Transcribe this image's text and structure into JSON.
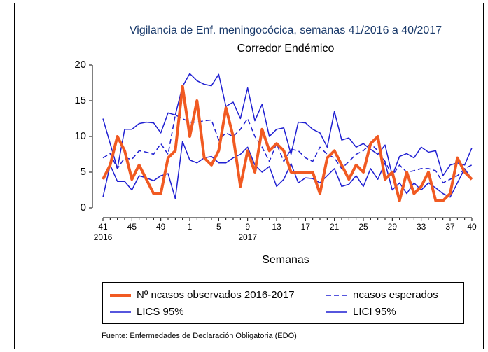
{
  "chart_data": {
    "type": "line",
    "title": "Vigilancia de Enf. meningocócica, semanas 41/2016 a 40/2017",
    "subtitle": "Corredor Endémico",
    "x_label": "Semanas",
    "source": "Fuente: Enfermedades de Declaración Obligatoria (EDO)",
    "categories": [
      "41",
      null,
      null,
      null,
      "45",
      null,
      null,
      null,
      "49",
      null,
      null,
      null,
      "1",
      null,
      null,
      null,
      "5",
      null,
      null,
      null,
      "9",
      null,
      null,
      null,
      "13",
      null,
      null,
      null,
      "17",
      null,
      null,
      null,
      "21",
      null,
      null,
      null,
      "25",
      null,
      null,
      null,
      "29",
      null,
      null,
      null,
      "33",
      null,
      null,
      null,
      "37",
      null,
      null,
      "40"
    ],
    "category_years": [
      "2016",
      null,
      null,
      null,
      null,
      null,
      null,
      null,
      null,
      null,
      null,
      null,
      null,
      null,
      null,
      null,
      null,
      null,
      null,
      null,
      "2017",
      null,
      null,
      null,
      null,
      null,
      null,
      null,
      null,
      null,
      null,
      null,
      null,
      null,
      null,
      null,
      null,
      null,
      null,
      null,
      null,
      null,
      null,
      null,
      null,
      null,
      null,
      null,
      null,
      null,
      null,
      null
    ],
    "ylim": [
      0,
      20
    ],
    "yticks": [
      0,
      5,
      10,
      15,
      20
    ],
    "series": [
      {
        "name": "Nº ncasos observados 2016-2017",
        "color": "#f15a22",
        "line_width": 4,
        "dashed": false,
        "values": [
          4,
          6,
          10,
          8,
          4,
          6,
          4,
          2,
          2,
          7,
          8,
          17,
          10,
          15,
          7,
          6,
          8,
          14,
          10,
          3,
          8,
          5,
          11,
          8,
          9,
          8,
          5,
          5,
          5,
          5,
          2,
          7,
          8,
          6,
          4,
          6,
          5,
          9,
          10,
          4,
          5,
          1,
          5,
          2,
          3,
          5,
          1,
          1,
          2,
          7,
          5,
          4
        ]
      },
      {
        "name": "ncasos esperados",
        "color": "#1f1fd2",
        "line_width": 1.5,
        "dashed": true,
        "values": [
          7,
          7.6,
          5.5,
          7,
          6.8,
          8,
          7.8,
          7.5,
          9,
          7.5,
          13,
          12.5,
          12,
          12,
          12.2,
          12.3,
          9.5,
          10.5,
          10,
          11,
          12.5,
          10,
          8.5,
          6.5,
          9,
          6.5,
          8.2,
          8,
          7,
          6.5,
          8.5,
          7.5,
          7,
          5.5,
          6.5,
          7.5,
          8,
          9,
          8,
          6.5,
          4.5,
          6,
          5,
          5.2,
          5.5,
          5.5,
          5.2,
          3.5,
          4,
          4.5,
          5.5,
          6
        ]
      },
      {
        "name": "LICS 95%",
        "color": "#1f1fd2",
        "line_width": 1.5,
        "dashed": false,
        "values": [
          12.5,
          9,
          5.5,
          11,
          11,
          11.8,
          12,
          11.9,
          10.5,
          13.3,
          13,
          17,
          18.8,
          17.8,
          17.3,
          17.1,
          18.7,
          14.2,
          14.8,
          12.5,
          16.8,
          12.2,
          14.5,
          10,
          11,
          11.2,
          7.5,
          12,
          11.9,
          11,
          10.5,
          8.5,
          13.5,
          9.5,
          9.8,
          8.5,
          9,
          8.2,
          7.5,
          8.8,
          4.5,
          7.2,
          7.6,
          7,
          8.5,
          7.8,
          8,
          4.5,
          6,
          6.3,
          6,
          8.4
        ]
      },
      {
        "name": "LICI 95%",
        "color": "#1f1fd2",
        "line_width": 1.5,
        "dashed": false,
        "values": [
          1.5,
          6,
          3.7,
          3.7,
          2.5,
          4.5,
          4.2,
          3.8,
          4.5,
          4.8,
          1.3,
          9.3,
          6.7,
          6.3,
          7,
          7.2,
          6.3,
          6.3,
          7,
          7.5,
          8.5,
          6,
          5,
          5.8,
          3,
          4,
          6.2,
          3.5,
          4.2,
          4.1,
          3.5,
          4.5,
          5.5,
          3,
          3.3,
          4.5,
          3,
          5.5,
          4,
          6.3,
          2.5,
          3.5,
          2,
          3.5,
          2.5,
          3.5,
          2.8,
          2,
          1.5,
          3.5,
          5.5,
          4
        ]
      }
    ]
  }
}
